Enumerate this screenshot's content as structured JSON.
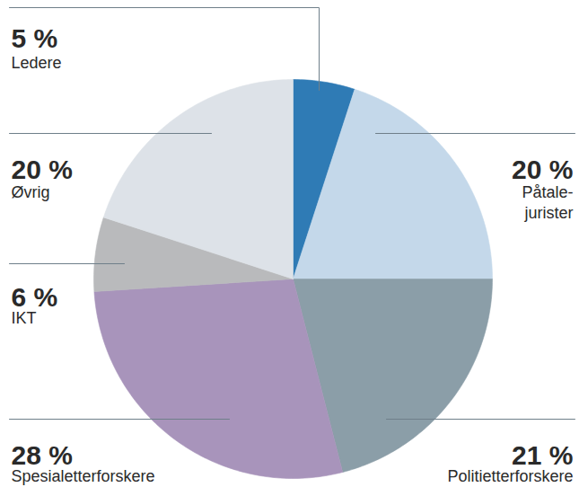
{
  "chart_data": {
    "type": "pie",
    "categories": [
      "Ledere",
      "Påtale-jurister",
      "Politietterforskere",
      "Spesialetterforskere",
      "IKT",
      "Øvrig"
    ],
    "values": [
      5,
      20,
      21,
      28,
      6,
      20
    ],
    "value_labels": [
      "5 %",
      "20 %",
      "21 %",
      "28 %",
      "6 %",
      "20 %"
    ],
    "colors": [
      "#2f7bb5",
      "#c4d8ea",
      "#8b9ea8",
      "#a894bb",
      "#b9babc",
      "#dde2e8"
    ],
    "data_labels": true
  }
}
